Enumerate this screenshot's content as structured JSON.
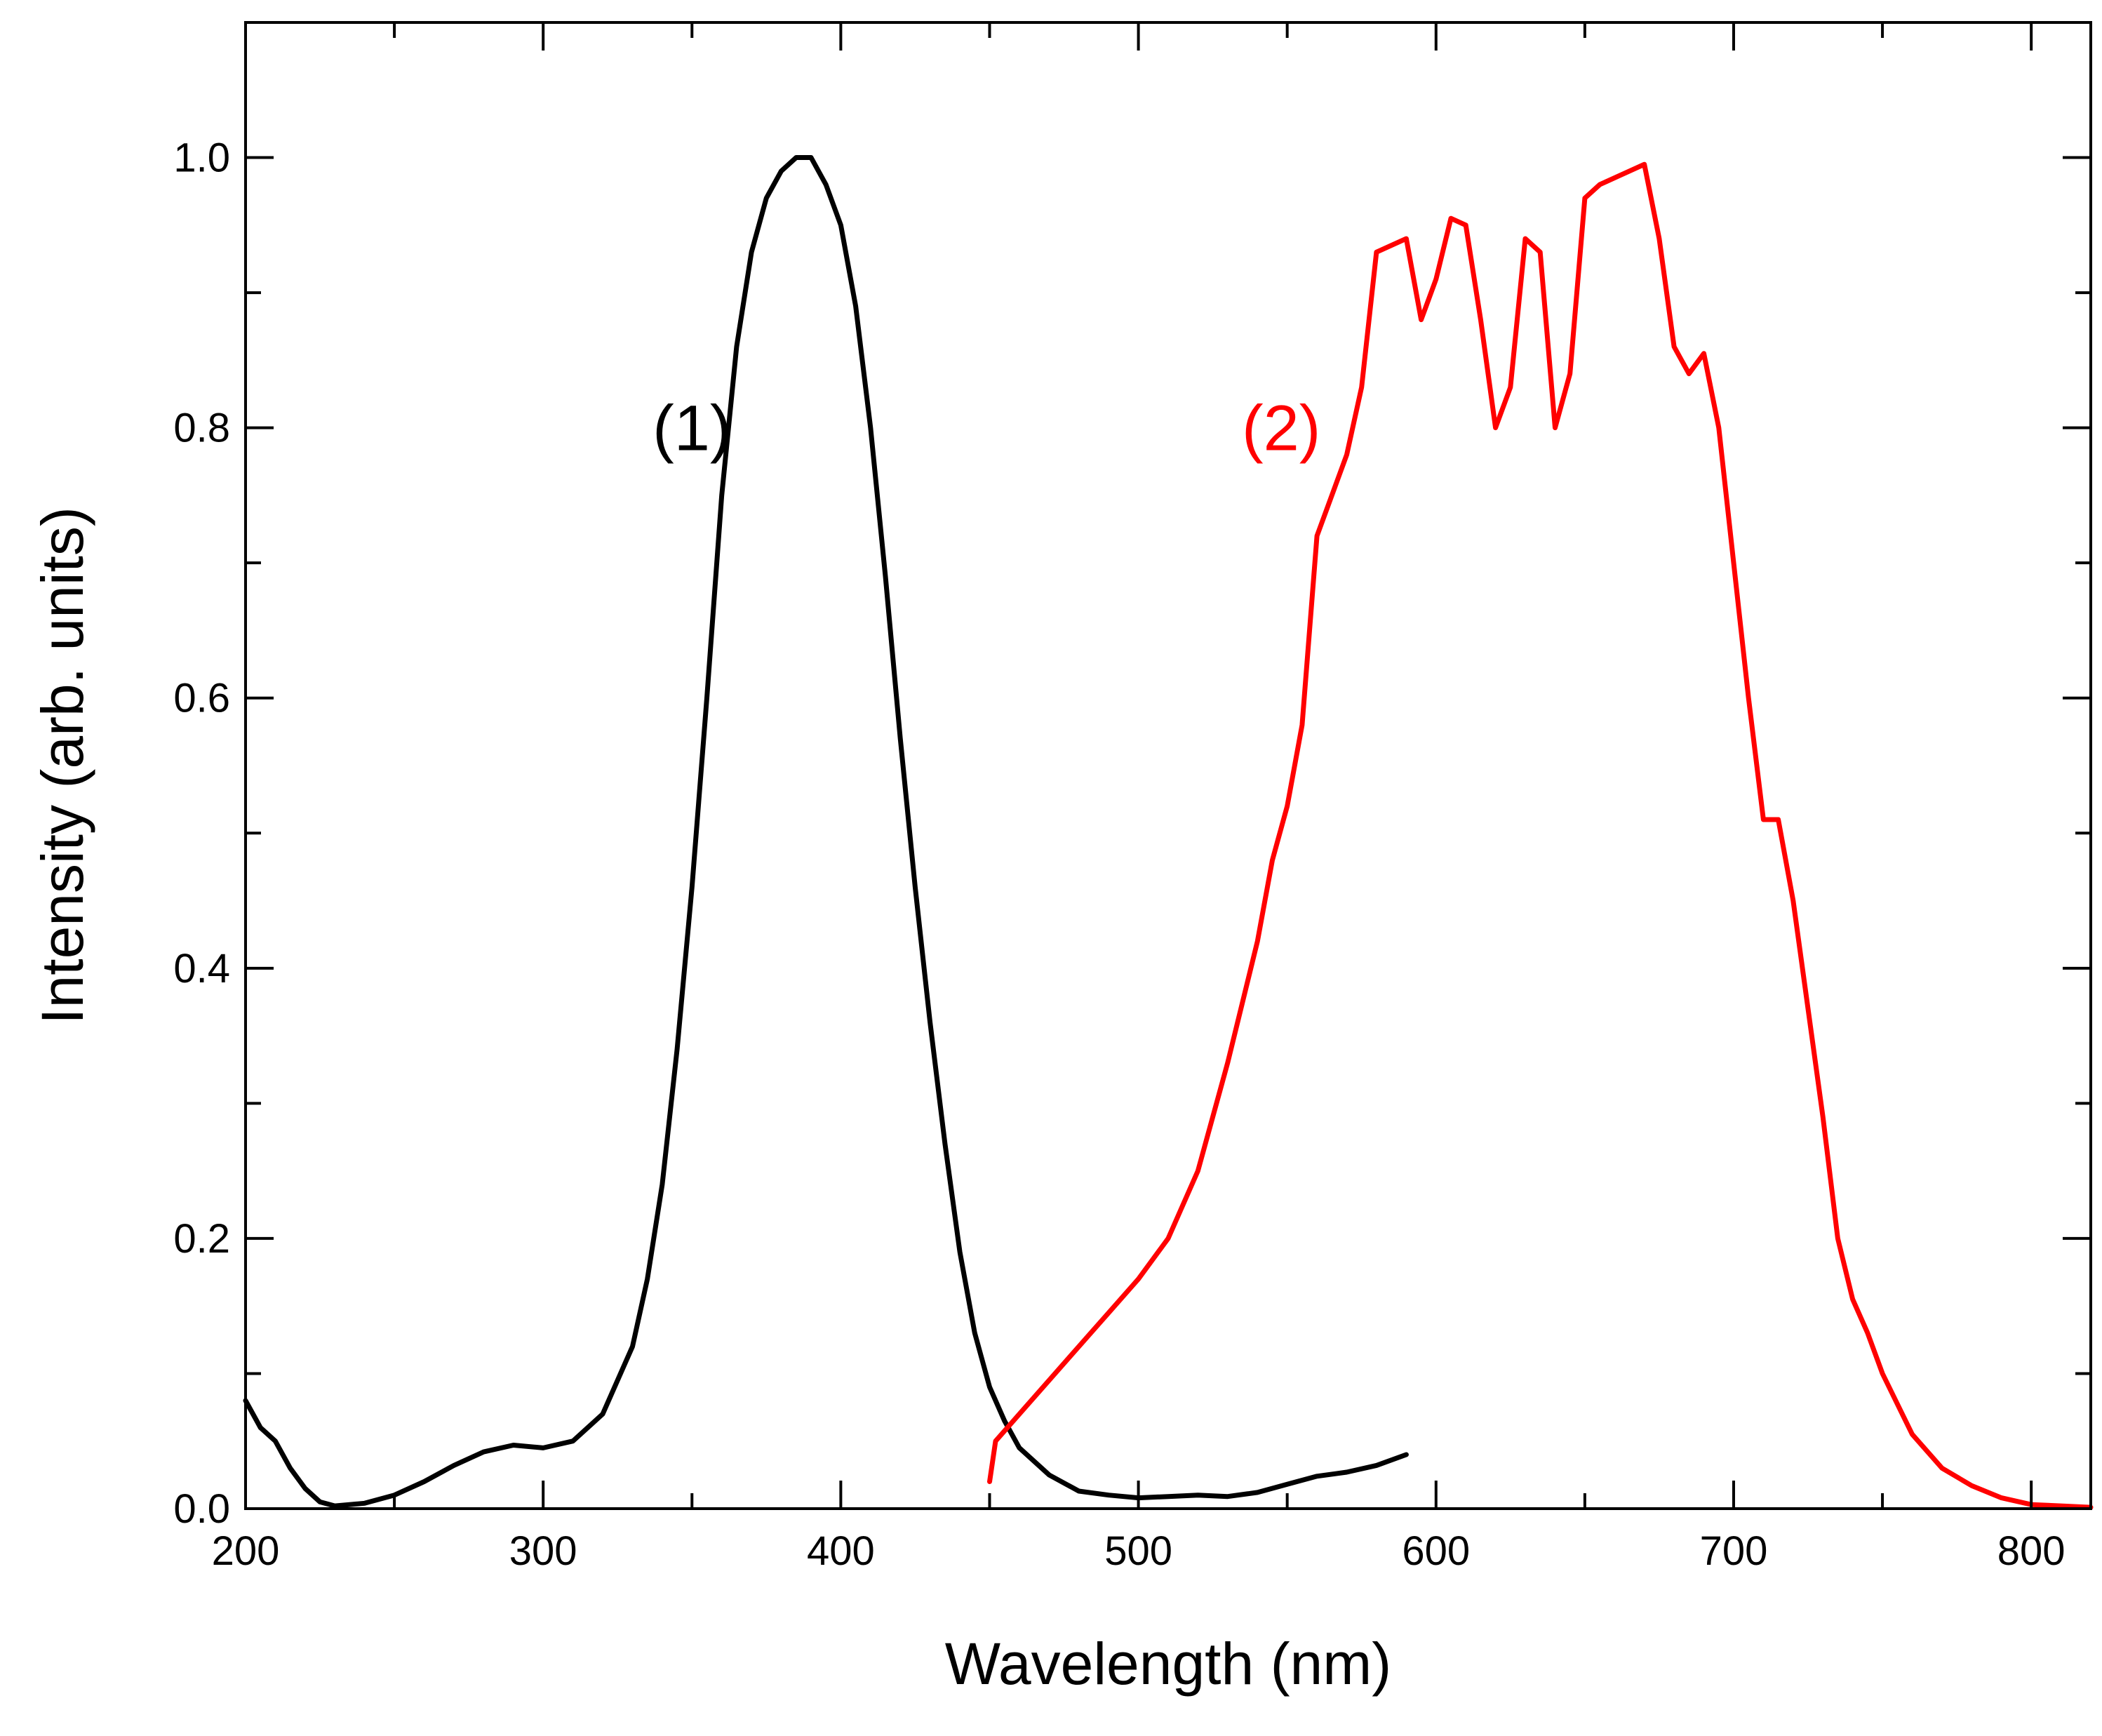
{
  "chart_data": {
    "type": "line",
    "title": "",
    "xlabel": "Wavelength (nm)",
    "ylabel": "Intensity (arb. units)",
    "xlim": [
      200,
      820
    ],
    "ylim": [
      0,
      1.1
    ],
    "x_ticks": [
      200,
      300,
      400,
      500,
      600,
      700,
      800
    ],
    "x_tick_labels": [
      "200",
      "300",
      "400",
      "500",
      "600",
      "700",
      "800"
    ],
    "y_ticks": [
      0.0,
      0.2,
      0.4,
      0.6,
      0.8,
      1.0
    ],
    "y_tick_labels": [
      "0.0",
      "0.2",
      "0.4",
      "0.6",
      "0.8",
      "1.0"
    ],
    "grid": false,
    "series": [
      {
        "name": "(1)",
        "label": "(1)",
        "label_at": [
          350,
          0.8
        ],
        "color": "#000000",
        "x": [
          200,
          205,
          210,
          215,
          220,
          225,
          230,
          240,
          250,
          260,
          270,
          280,
          290,
          300,
          310,
          320,
          330,
          335,
          340,
          345,
          350,
          355,
          360,
          365,
          370,
          375,
          380,
          385,
          390,
          395,
          400,
          405,
          410,
          415,
          420,
          425,
          430,
          435,
          440,
          445,
          450,
          455,
          460,
          470,
          480,
          490,
          500,
          510,
          520,
          530,
          540,
          550,
          560,
          570,
          580,
          590
        ],
        "y": [
          0.08,
          0.06,
          0.05,
          0.03,
          0.015,
          0.005,
          0.002,
          0.004,
          0.01,
          0.02,
          0.032,
          0.042,
          0.047,
          0.045,
          0.05,
          0.07,
          0.12,
          0.17,
          0.24,
          0.34,
          0.46,
          0.6,
          0.75,
          0.86,
          0.93,
          0.97,
          0.99,
          1.0,
          1.0,
          0.98,
          0.95,
          0.89,
          0.8,
          0.69,
          0.57,
          0.46,
          0.36,
          0.27,
          0.19,
          0.13,
          0.09,
          0.065,
          0.045,
          0.025,
          0.013,
          0.01,
          0.008,
          0.009,
          0.01,
          0.009,
          0.012,
          0.018,
          0.024,
          0.027,
          0.032,
          0.04
        ]
      },
      {
        "name": "(2)",
        "label": "(2)",
        "label_at": [
          548,
          0.8
        ],
        "color": "#ff0000",
        "x": [
          450,
          452,
          460,
          470,
          480,
          490,
          500,
          510,
          520,
          530,
          540,
          545,
          550,
          555,
          560,
          565,
          570,
          575,
          580,
          585,
          590,
          595,
          600,
          605,
          610,
          615,
          620,
          625,
          630,
          635,
          640,
          645,
          650,
          655,
          660,
          665,
          670,
          675,
          680,
          685,
          690,
          695,
          700,
          705,
          710,
          715,
          720,
          725,
          730,
          735,
          740,
          745,
          750,
          760,
          770,
          780,
          790,
          800,
          810,
          820
        ],
        "y": [
          0.02,
          0.05,
          0.07,
          0.095,
          0.12,
          0.145,
          0.17,
          0.2,
          0.25,
          0.33,
          0.42,
          0.48,
          0.52,
          0.58,
          0.72,
          0.75,
          0.78,
          0.83,
          0.93,
          0.935,
          0.94,
          0.88,
          0.91,
          0.955,
          0.95,
          0.88,
          0.8,
          0.83,
          0.94,
          0.93,
          0.8,
          0.84,
          0.97,
          0.98,
          0.985,
          0.99,
          0.995,
          0.94,
          0.86,
          0.84,
          0.855,
          0.8,
          0.7,
          0.6,
          0.51,
          0.51,
          0.45,
          0.37,
          0.29,
          0.2,
          0.155,
          0.13,
          0.1,
          0.055,
          0.03,
          0.017,
          0.008,
          0.003,
          0.002,
          0.001
        ]
      }
    ]
  }
}
